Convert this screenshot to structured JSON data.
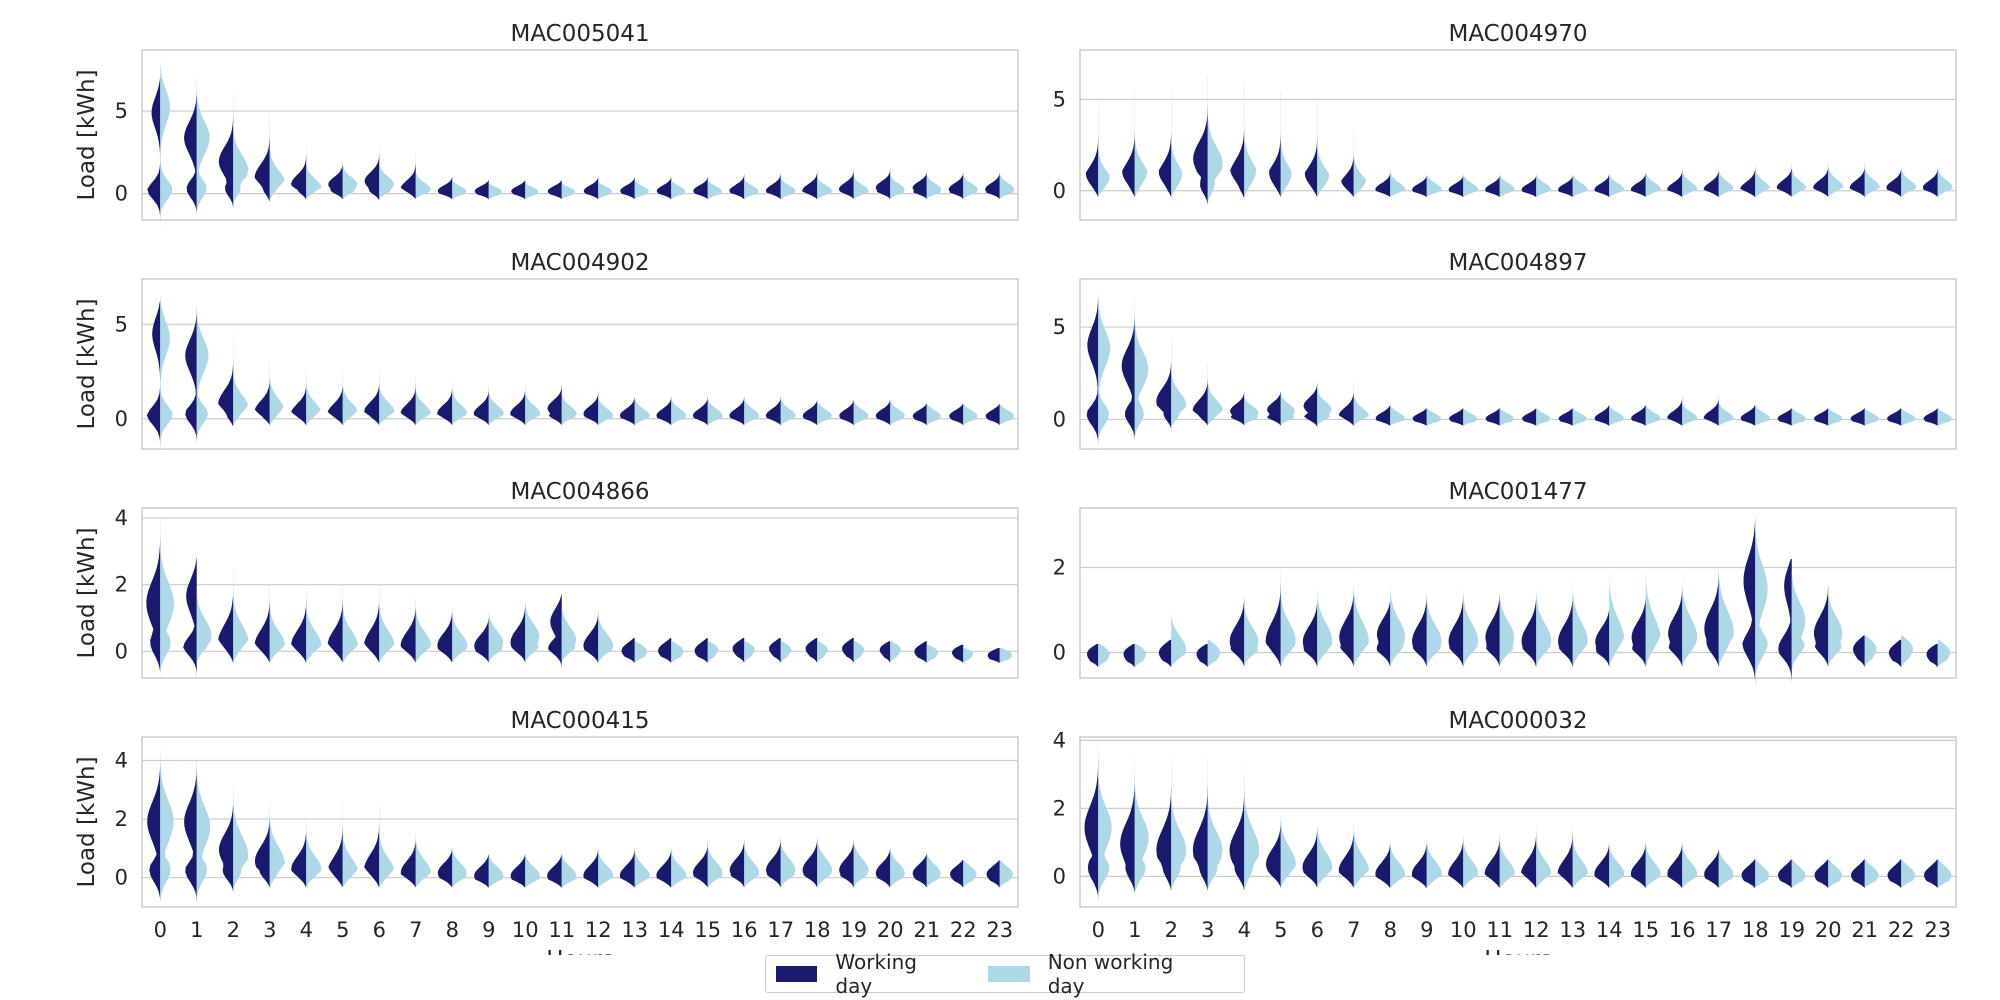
{
  "colors": {
    "working": "#191970",
    "nonworking": "#add8e6"
  },
  "legend": {
    "working_label": "Working day",
    "nonworking_label": "Non working day"
  },
  "chart_data": [
    {
      "type": "violin",
      "title": "MAC005041",
      "ylabel": "Load [kWh]",
      "xlabel": "Hours",
      "categories": [
        0,
        1,
        2,
        3,
        4,
        5,
        6,
        7,
        8,
        9,
        10,
        11,
        12,
        13,
        14,
        15,
        16,
        17,
        18,
        19,
        20,
        21,
        22,
        23
      ],
      "yticks": [
        0,
        5
      ],
      "ylim": [
        -1.6,
        8.7
      ],
      "series": [
        {
          "name": "Working day",
          "median": [
            5.2,
            3.5,
            2.0,
            1.0,
            0.6,
            0.6,
            0.8,
            0.3,
            0.2,
            0.2,
            0.2,
            0.2,
            0.2,
            0.2,
            0.2,
            0.2,
            0.2,
            0.2,
            0.2,
            0.3,
            0.4,
            0.4,
            0.3,
            0.3
          ],
          "max": [
            7.0,
            7.0,
            6.2,
            5.3,
            3.0,
            2.0,
            2.8,
            2.5,
            1.0,
            0.8,
            0.8,
            0.8,
            1.0,
            1.0,
            1.0,
            1.0,
            1.2,
            1.3,
            1.5,
            1.5,
            1.5,
            1.3,
            1.3,
            1.3
          ]
        },
        {
          "name": "Non working day",
          "median": [
            5.5,
            3.5,
            1.5,
            0.7,
            0.4,
            0.6,
            0.6,
            0.3,
            0.2,
            0.2,
            0.2,
            0.2,
            0.2,
            0.2,
            0.2,
            0.2,
            0.2,
            0.2,
            0.2,
            0.2,
            0.3,
            0.3,
            0.3,
            0.3
          ],
          "max": [
            8.0,
            7.3,
            6.0,
            4.5,
            2.5,
            2.0,
            2.2,
            1.5,
            0.8,
            0.6,
            0.6,
            0.6,
            0.7,
            0.8,
            0.8,
            0.8,
            0.9,
            1.0,
            1.1,
            1.2,
            1.2,
            1.2,
            1.2,
            1.3
          ]
        }
      ]
    },
    {
      "type": "violin",
      "title": "MAC004970",
      "ylabel": "",
      "xlabel": "Hours",
      "categories": [
        0,
        1,
        2,
        3,
        4,
        5,
        6,
        7,
        8,
        9,
        10,
        11,
        12,
        13,
        14,
        15,
        16,
        17,
        18,
        19,
        20,
        21,
        22,
        23
      ],
      "yticks": [
        0,
        5
      ],
      "ylim": [
        -1.6,
        7.7
      ],
      "series": [
        {
          "name": "Working day",
          "median": [
            0.5,
            0.6,
            0.6,
            1.8,
            0.8,
            0.5,
            0.5,
            0.2,
            0.1,
            0.1,
            0.1,
            0.1,
            0.1,
            0.1,
            0.1,
            0.1,
            0.1,
            0.1,
            0.1,
            0.2,
            0.2,
            0.2,
            0.2,
            0.2
          ],
          "max": [
            5.0,
            5.5,
            5.5,
            6.3,
            5.8,
            5.5,
            5.0,
            3.3,
            1.0,
            0.8,
            0.8,
            0.8,
            0.8,
            0.8,
            0.9,
            1.0,
            1.2,
            1.3,
            1.5,
            1.5,
            1.5,
            1.5,
            1.3,
            1.3
          ]
        },
        {
          "name": "Non working day",
          "median": [
            0.3,
            0.6,
            0.4,
            1.5,
            0.6,
            0.4,
            0.4,
            0.2,
            0.1,
            0.1,
            0.1,
            0.1,
            0.1,
            0.1,
            0.1,
            0.1,
            0.1,
            0.1,
            0.1,
            0.1,
            0.2,
            0.2,
            0.2,
            0.2
          ],
          "max": [
            4.5,
            5.5,
            5.5,
            6.5,
            6.0,
            5.5,
            4.8,
            3.5,
            1.2,
            1.0,
            1.0,
            1.0,
            1.0,
            1.0,
            1.0,
            1.2,
            1.4,
            1.5,
            1.7,
            1.7,
            1.8,
            1.7,
            1.5,
            1.5
          ]
        }
      ]
    },
    {
      "type": "violin",
      "title": "MAC004902",
      "ylabel": "Load [kWh]",
      "xlabel": "Hours",
      "categories": [
        0,
        1,
        2,
        3,
        4,
        5,
        6,
        7,
        8,
        9,
        10,
        11,
        12,
        13,
        14,
        15,
        16,
        17,
        18,
        19,
        20,
        21,
        22,
        23
      ],
      "yticks": [
        0,
        5
      ],
      "ylim": [
        -1.6,
        7.4
      ],
      "series": [
        {
          "name": "Working day",
          "median": [
            4.8,
            3.5,
            0.8,
            0.4,
            0.3,
            0.3,
            0.4,
            0.3,
            0.3,
            0.3,
            0.3,
            0.6,
            0.3,
            0.2,
            0.2,
            0.2,
            0.2,
            0.2,
            0.2,
            0.2,
            0.2,
            0.2,
            0.2,
            0.2
          ],
          "max": [
            6.2,
            6.0,
            4.5,
            3.0,
            2.5,
            2.5,
            2.5,
            2.3,
            2.0,
            1.8,
            1.8,
            1.8,
            1.5,
            1.2,
            1.2,
            1.2,
            1.2,
            1.2,
            1.0,
            1.0,
            1.0,
            0.8,
            0.8,
            0.8
          ]
        },
        {
          "name": "Non working day",
          "median": [
            4.5,
            3.5,
            0.6,
            0.4,
            0.3,
            0.3,
            0.4,
            0.3,
            0.3,
            0.3,
            0.3,
            0.3,
            0.2,
            0.2,
            0.2,
            0.2,
            0.2,
            0.2,
            0.2,
            0.2,
            0.2,
            0.2,
            0.2,
            0.2
          ],
          "max": [
            6.5,
            6.2,
            4.0,
            3.8,
            3.0,
            2.8,
            2.5,
            2.2,
            2.0,
            1.8,
            1.8,
            1.5,
            1.3,
            1.2,
            1.2,
            1.2,
            1.2,
            1.2,
            1.0,
            1.0,
            1.0,
            0.8,
            0.8,
            0.8
          ]
        }
      ]
    },
    {
      "type": "violin",
      "title": "MAC004897",
      "ylabel": "",
      "xlabel": "Hours",
      "categories": [
        0,
        1,
        2,
        3,
        4,
        5,
        6,
        7,
        8,
        9,
        10,
        11,
        12,
        13,
        14,
        15,
        16,
        17,
        18,
        19,
        20,
        21,
        22,
        23
      ],
      "yticks": [
        0,
        5
      ],
      "ylim": [
        -1.6,
        7.6
      ],
      "series": [
        {
          "name": "Working day",
          "median": [
            4.2,
            3.0,
            1.0,
            0.5,
            0.5,
            0.6,
            0.8,
            0.2,
            0.1,
            0.1,
            0.1,
            0.1,
            0.1,
            0.1,
            0.1,
            0.1,
            0.1,
            0.1,
            0.1,
            0.1,
            0.1,
            0.1,
            0.1,
            0.1
          ],
          "max": [
            6.8,
            6.5,
            4.5,
            3.0,
            1.5,
            1.5,
            2.0,
            2.0,
            0.8,
            0.6,
            0.6,
            0.6,
            0.6,
            0.6,
            0.8,
            0.8,
            1.3,
            1.3,
            0.8,
            0.6,
            0.6,
            0.6,
            0.6,
            0.6
          ]
        },
        {
          "name": "Non working day",
          "median": [
            4.0,
            2.8,
            0.8,
            0.5,
            0.4,
            0.5,
            0.6,
            0.2,
            0.1,
            0.1,
            0.1,
            0.1,
            0.1,
            0.1,
            0.1,
            0.1,
            0.1,
            0.1,
            0.1,
            0.1,
            0.1,
            0.1,
            0.1,
            0.1
          ],
          "max": [
            7.2,
            6.8,
            4.0,
            3.0,
            1.3,
            1.5,
            1.8,
            1.8,
            0.8,
            0.6,
            0.6,
            0.6,
            0.6,
            0.6,
            0.8,
            0.8,
            1.0,
            1.0,
            0.8,
            0.6,
            0.6,
            0.6,
            0.6,
            0.6
          ]
        }
      ]
    },
    {
      "type": "violin",
      "title": "MAC004866",
      "ylabel": "Load [kWh]",
      "xlabel": "Hours",
      "categories": [
        0,
        1,
        2,
        3,
        4,
        5,
        6,
        7,
        8,
        9,
        10,
        11,
        12,
        13,
        14,
        15,
        16,
        17,
        18,
        19,
        20,
        21,
        22,
        23
      ],
      "yticks": [
        0,
        2,
        4
      ],
      "ylim": [
        -0.8,
        4.3
      ],
      "series": [
        {
          "name": "Working day",
          "median": [
            1.5,
            1.8,
            0.3,
            0.2,
            0.2,
            0.2,
            0.2,
            0.2,
            0.2,
            0.2,
            0.3,
            1.0,
            0.2,
            0.1,
            0.1,
            0.1,
            0.2,
            0.2,
            0.2,
            0.2,
            0.2,
            0.1,
            0.1,
            0.0
          ],
          "max": [
            4.0,
            2.8,
            2.5,
            2.0,
            1.9,
            2.0,
            2.0,
            1.6,
            1.3,
            1.0,
            1.5,
            1.7,
            1.2,
            0.4,
            0.4,
            0.4,
            0.4,
            0.4,
            0.4,
            0.4,
            0.3,
            0.3,
            0.2,
            0.1
          ]
        },
        {
          "name": "Non working day",
          "median": [
            1.5,
            0.5,
            0.3,
            0.2,
            0.2,
            0.2,
            0.2,
            0.2,
            0.2,
            0.3,
            0.5,
            0.4,
            0.2,
            0.1,
            0.1,
            0.2,
            0.2,
            0.2,
            0.2,
            0.2,
            0.2,
            0.1,
            0.1,
            0.0
          ],
          "max": [
            3.8,
            2.2,
            2.5,
            1.8,
            1.8,
            1.8,
            1.9,
            1.6,
            1.3,
            1.2,
            1.5,
            1.4,
            1.2,
            0.3,
            0.3,
            0.3,
            0.3,
            0.3,
            0.3,
            0.3,
            0.3,
            0.2,
            0.1,
            0.1
          ]
        }
      ]
    },
    {
      "type": "violin",
      "title": "MAC001477",
      "ylabel": "",
      "xlabel": "Hours",
      "categories": [
        0,
        1,
        2,
        3,
        4,
        5,
        6,
        7,
        8,
        9,
        10,
        11,
        12,
        13,
        14,
        15,
        16,
        17,
        18,
        19,
        20,
        21,
        22,
        23
      ],
      "yticks": [
        0,
        2
      ],
      "ylim": [
        -0.6,
        3.4
      ],
      "series": [
        {
          "name": "Working day",
          "median": [
            0.1,
            0.1,
            0.1,
            0.1,
            0.3,
            0.3,
            0.3,
            0.4,
            0.5,
            0.3,
            0.3,
            0.4,
            0.3,
            0.3,
            0.3,
            0.4,
            0.5,
            0.6,
            1.8,
            1.8,
            0.5,
            0.2,
            0.1,
            0.1
          ],
          "max": [
            0.2,
            0.2,
            0.3,
            0.2,
            1.3,
            1.9,
            1.2,
            1.5,
            1.2,
            1.4,
            1.4,
            1.4,
            1.4,
            1.4,
            1.0,
            1.3,
            1.5,
            2.0,
            3.2,
            2.2,
            1.6,
            0.4,
            0.3,
            0.2
          ]
        },
        {
          "name": "Non working day",
          "median": [
            0.1,
            0.1,
            0.1,
            0.1,
            0.3,
            0.3,
            0.3,
            0.3,
            0.4,
            0.3,
            0.3,
            0.4,
            0.3,
            0.3,
            0.3,
            0.3,
            0.4,
            0.5,
            1.6,
            0.8,
            0.5,
            0.2,
            0.2,
            0.1
          ],
          "max": [
            0.2,
            0.2,
            0.9,
            0.3,
            1.1,
            1.7,
            1.7,
            1.9,
            1.7,
            1.4,
            1.6,
            1.4,
            1.6,
            1.8,
            2.5,
            2.7,
            1.9,
            2.5,
            3.1,
            2.0,
            1.5,
            0.4,
            0.4,
            0.3
          ]
        }
      ]
    },
    {
      "type": "violin",
      "title": "MAC000415",
      "ylabel": "Load [kWh]",
      "xlabel": "Hours",
      "categories": [
        0,
        1,
        2,
        3,
        4,
        5,
        6,
        7,
        8,
        9,
        10,
        11,
        12,
        13,
        14,
        15,
        16,
        17,
        18,
        19,
        20,
        21,
        22,
        23
      ],
      "yticks": [
        0,
        2,
        4
      ],
      "ylim": [
        -1.0,
        4.8
      ],
      "series": [
        {
          "name": "Working day",
          "median": [
            2.0,
            2.0,
            1.0,
            0.6,
            0.3,
            0.2,
            0.3,
            0.2,
            0.2,
            0.1,
            0.1,
            0.1,
            0.1,
            0.1,
            0.1,
            0.2,
            0.3,
            0.3,
            0.3,
            0.3,
            0.2,
            0.2,
            0.2,
            0.2
          ],
          "max": [
            4.3,
            4.0,
            3.0,
            2.5,
            2.0,
            2.5,
            2.5,
            1.5,
            1.0,
            0.8,
            0.8,
            0.8,
            1.0,
            1.0,
            1.0,
            1.2,
            1.3,
            1.4,
            1.4,
            1.3,
            1.0,
            0.8,
            0.6,
            0.6
          ]
        },
        {
          "name": "Non working day",
          "median": [
            2.0,
            1.8,
            0.8,
            0.5,
            0.3,
            0.2,
            0.2,
            0.2,
            0.2,
            0.1,
            0.1,
            0.1,
            0.1,
            0.1,
            0.1,
            0.2,
            0.2,
            0.3,
            0.3,
            0.3,
            0.2,
            0.2,
            0.2,
            0.2
          ],
          "max": [
            4.6,
            4.3,
            3.8,
            3.0,
            2.0,
            2.2,
            2.3,
            1.7,
            1.0,
            0.8,
            0.8,
            0.8,
            1.0,
            1.0,
            1.0,
            1.2,
            1.3,
            1.4,
            1.5,
            1.4,
            1.0,
            0.8,
            0.6,
            0.6
          ]
        }
      ]
    },
    {
      "type": "violin",
      "title": "MAC000032",
      "ylabel": "",
      "xlabel": "Hours",
      "categories": [
        0,
        1,
        2,
        3,
        4,
        5,
        6,
        7,
        8,
        9,
        10,
        11,
        12,
        13,
        14,
        15,
        16,
        17,
        18,
        19,
        20,
        21,
        22,
        23
      ],
      "yticks": [
        0,
        2,
        4
      ],
      "ylim": [
        -0.9,
        4.1
      ],
      "series": [
        {
          "name": "Working day",
          "median": [
            1.5,
            1.0,
            0.8,
            0.8,
            0.8,
            0.4,
            0.3,
            0.2,
            0.1,
            0.1,
            0.1,
            0.1,
            0.1,
            0.1,
            0.1,
            0.1,
            0.1,
            0.1,
            0.1,
            0.1,
            0.1,
            0.1,
            0.1,
            0.1
          ],
          "max": [
            3.8,
            3.5,
            3.5,
            3.5,
            3.0,
            1.8,
            1.5,
            1.5,
            1.0,
            1.0,
            1.2,
            1.3,
            1.5,
            1.5,
            1.0,
            1.0,
            1.0,
            0.8,
            0.5,
            0.5,
            0.5,
            0.5,
            0.5,
            0.5
          ]
        },
        {
          "name": "Non working day",
          "median": [
            1.5,
            1.2,
            0.8,
            0.8,
            0.8,
            0.4,
            0.3,
            0.2,
            0.1,
            0.1,
            0.1,
            0.1,
            0.1,
            0.1,
            0.1,
            0.1,
            0.1,
            0.1,
            0.1,
            0.1,
            0.1,
            0.1,
            0.1,
            0.1
          ],
          "max": [
            3.5,
            3.2,
            3.2,
            3.0,
            3.5,
            2.2,
            1.8,
            1.8,
            1.0,
            1.2,
            1.3,
            1.3,
            1.4,
            1.4,
            1.0,
            1.0,
            1.0,
            0.8,
            0.5,
            0.5,
            0.5,
            0.5,
            0.5,
            0.5
          ]
        }
      ]
    }
  ]
}
